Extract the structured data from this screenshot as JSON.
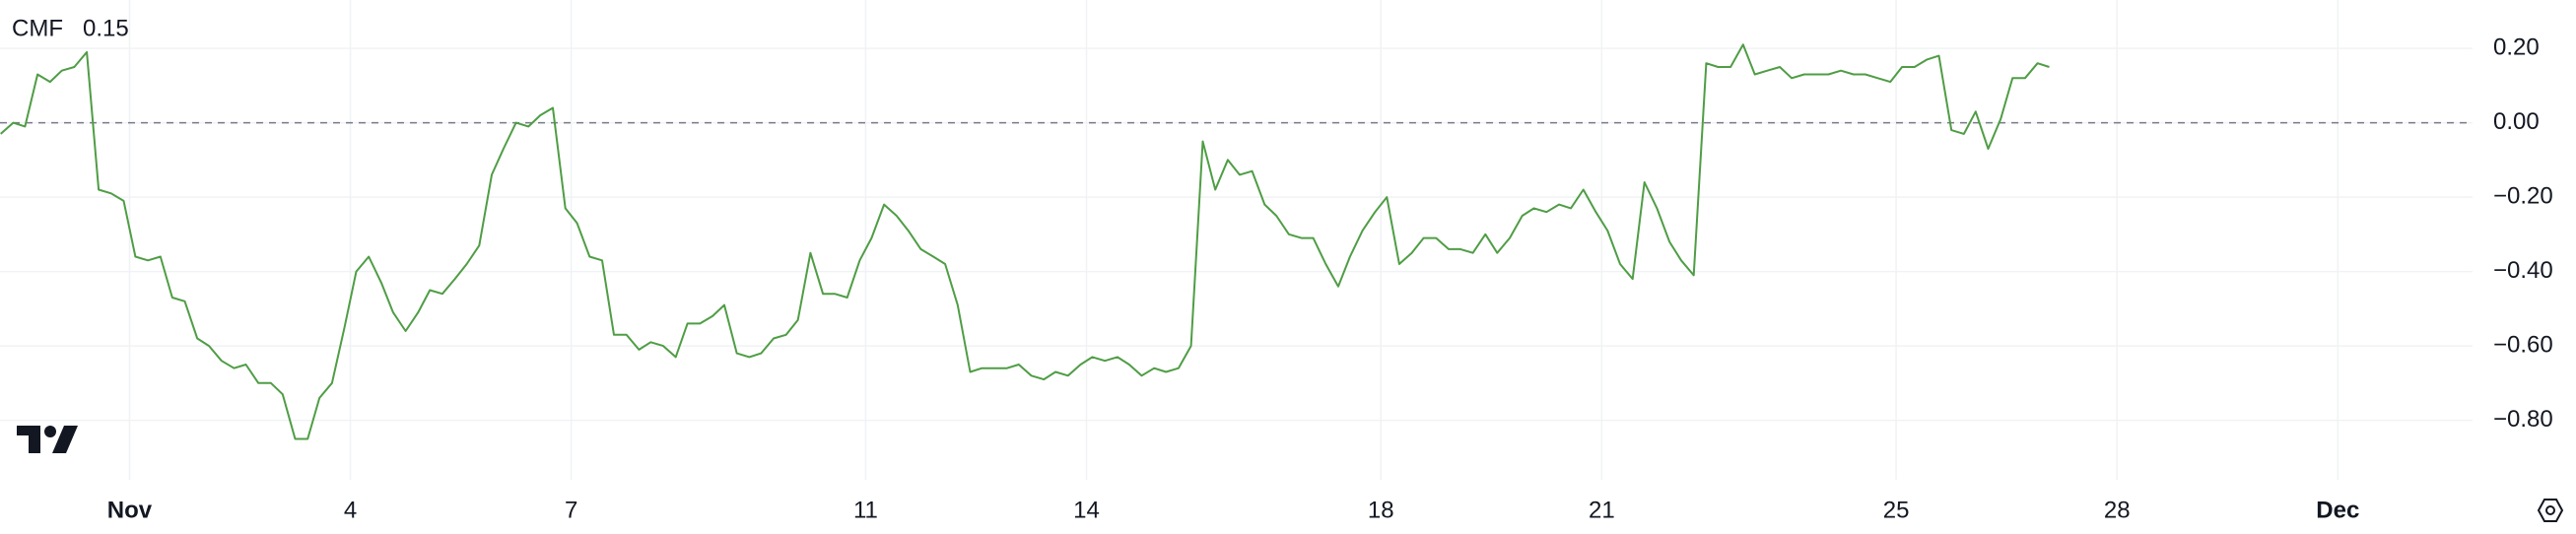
{
  "chart_data": {
    "type": "line",
    "title": "CMF",
    "last_value": 0.15,
    "x": [
      -0.75,
      -0.58,
      -0.42,
      -0.25,
      -0.08,
      0.08,
      0.25,
      0.42,
      0.58,
      0.75,
      0.92,
      1.08,
      1.25,
      1.42,
      1.58,
      1.75,
      1.92,
      2.08,
      2.25,
      2.42,
      2.58,
      2.75,
      2.92,
      3.08,
      3.25,
      3.42,
      3.58,
      3.75,
      3.92,
      4.08,
      4.25,
      4.42,
      4.58,
      4.75,
      4.92,
      5.08,
      5.25,
      5.42,
      5.58,
      5.75,
      5.92,
      6.08,
      6.25,
      6.42,
      6.58,
      6.75,
      6.92,
      7.08,
      7.25,
      7.42,
      7.58,
      7.75,
      7.92,
      8.08,
      8.25,
      8.42,
      8.58,
      8.75,
      8.92,
      9.08,
      9.25,
      9.42,
      9.58,
      9.75,
      9.92,
      10.08,
      10.25,
      10.42,
      10.58,
      10.75,
      10.92,
      11.08,
      11.25,
      11.42,
      11.58,
      11.75,
      11.92,
      12.08,
      12.25,
      12.42,
      12.58,
      12.75,
      12.92,
      13.08,
      13.25,
      13.42,
      13.58,
      13.75,
      13.92,
      14.08,
      14.25,
      14.42,
      14.58,
      14.75,
      14.92,
      15.08,
      15.25,
      15.42,
      15.58,
      15.75,
      15.92,
      16.08,
      16.25,
      16.42,
      16.58,
      16.75,
      16.92,
      17.08,
      17.25,
      17.42,
      17.58,
      17.75,
      17.92,
      18.08,
      18.25,
      18.42,
      18.58,
      18.75,
      18.92,
      19.08,
      19.25,
      19.42,
      19.58,
      19.75,
      19.92,
      20.08,
      20.25,
      20.42,
      20.58,
      20.75,
      20.92,
      21.08,
      21.25,
      21.42,
      21.58,
      21.75,
      21.92,
      22.08,
      22.25,
      22.42,
      22.58,
      22.75,
      22.92,
      23.08,
      23.25,
      23.42,
      23.58,
      23.75,
      23.92,
      24.08,
      24.25,
      24.42,
      24.58,
      24.75,
      24.92,
      25.08,
      25.25,
      25.42,
      25.58,
      25.75,
      25.92,
      26.08,
      26.25,
      26.42,
      26.58,
      26.75,
      26.92,
      27.08
    ],
    "series": [
      {
        "name": "CMF",
        "color": "#4f9d45",
        "values": [
          -0.03,
          0,
          -0.01,
          0.13,
          0.11,
          0.14,
          0.15,
          0.19,
          -0.18,
          -0.19,
          -0.21,
          -0.36,
          -0.37,
          -0.36,
          -0.47,
          -0.48,
          -0.58,
          -0.6,
          -0.64,
          -0.66,
          -0.65,
          -0.7,
          -0.7,
          -0.73,
          -0.85,
          -0.85,
          -0.74,
          -0.7,
          -0.55,
          -0.4,
          -0.36,
          -0.43,
          -0.51,
          -0.56,
          -0.51,
          -0.45,
          -0.46,
          -0.42,
          -0.38,
          -0.33,
          -0.14,
          -0.07,
          0,
          -0.01,
          0.02,
          0.04,
          -0.23,
          -0.27,
          -0.36,
          -0.37,
          -0.57,
          -0.57,
          -0.61,
          -0.59,
          -0.6,
          -0.63,
          -0.54,
          -0.54,
          -0.52,
          -0.49,
          -0.62,
          -0.63,
          -0.62,
          -0.58,
          -0.57,
          -0.53,
          -0.35,
          -0.46,
          -0.46,
          -0.47,
          -0.37,
          -0.31,
          -0.22,
          -0.25,
          -0.29,
          -0.34,
          -0.36,
          -0.38,
          -0.49,
          -0.67,
          -0.66,
          -0.66,
          -0.66,
          -0.65,
          -0.68,
          -0.69,
          -0.67,
          -0.68,
          -0.65,
          -0.63,
          -0.64,
          -0.63,
          -0.65,
          -0.68,
          -0.66,
          -0.67,
          -0.66,
          -0.6,
          -0.05,
          -0.18,
          -0.1,
          -0.14,
          -0.13,
          -0.22,
          -0.25,
          -0.3,
          -0.31,
          -0.31,
          -0.38,
          -0.44,
          -0.36,
          -0.29,
          -0.24,
          -0.2,
          -0.38,
          -0.35,
          -0.31,
          -0.31,
          -0.34,
          -0.34,
          -0.35,
          -0.3,
          -0.35,
          -0.31,
          -0.25,
          -0.23,
          -0.24,
          -0.22,
          -0.23,
          -0.18,
          -0.24,
          -0.29,
          -0.38,
          -0.42,
          -0.16,
          -0.23,
          -0.32,
          -0.37,
          -0.41,
          0.16,
          0.15,
          0.15,
          0.21,
          0.13,
          0.14,
          0.15,
          0.12,
          0.13,
          0.13,
          0.13,
          0.14,
          0.13,
          0.13,
          0.12,
          0.11,
          0.15,
          0.15,
          0.17,
          0.18,
          -0.02,
          -0.03,
          0.03,
          -0.07,
          0.01,
          0.12,
          0.12,
          0.16,
          0.15
        ]
      }
    ],
    "xlim": [
      -0.76,
      32.83
    ],
    "xticks": [
      {
        "value": 1,
        "label": "Nov"
      },
      4,
      7,
      11,
      14,
      18,
      21,
      25,
      28,
      {
        "value": 31,
        "label": "Dec"
      }
    ],
    "ylim": [
      -0.96,
      0.33
    ],
    "yticks": [
      {
        "value": 0.2,
        "label": "0.20"
      },
      {
        "value": 0,
        "label": "0.00"
      },
      {
        "value": -0.2,
        "label": "−0.20"
      },
      {
        "value": -0.4,
        "label": "−0.40"
      },
      {
        "value": -0.6,
        "label": "−0.60"
      },
      {
        "value": -0.8,
        "label": "−0.80"
      }
    ],
    "hline": 0,
    "grid": true
  }
}
